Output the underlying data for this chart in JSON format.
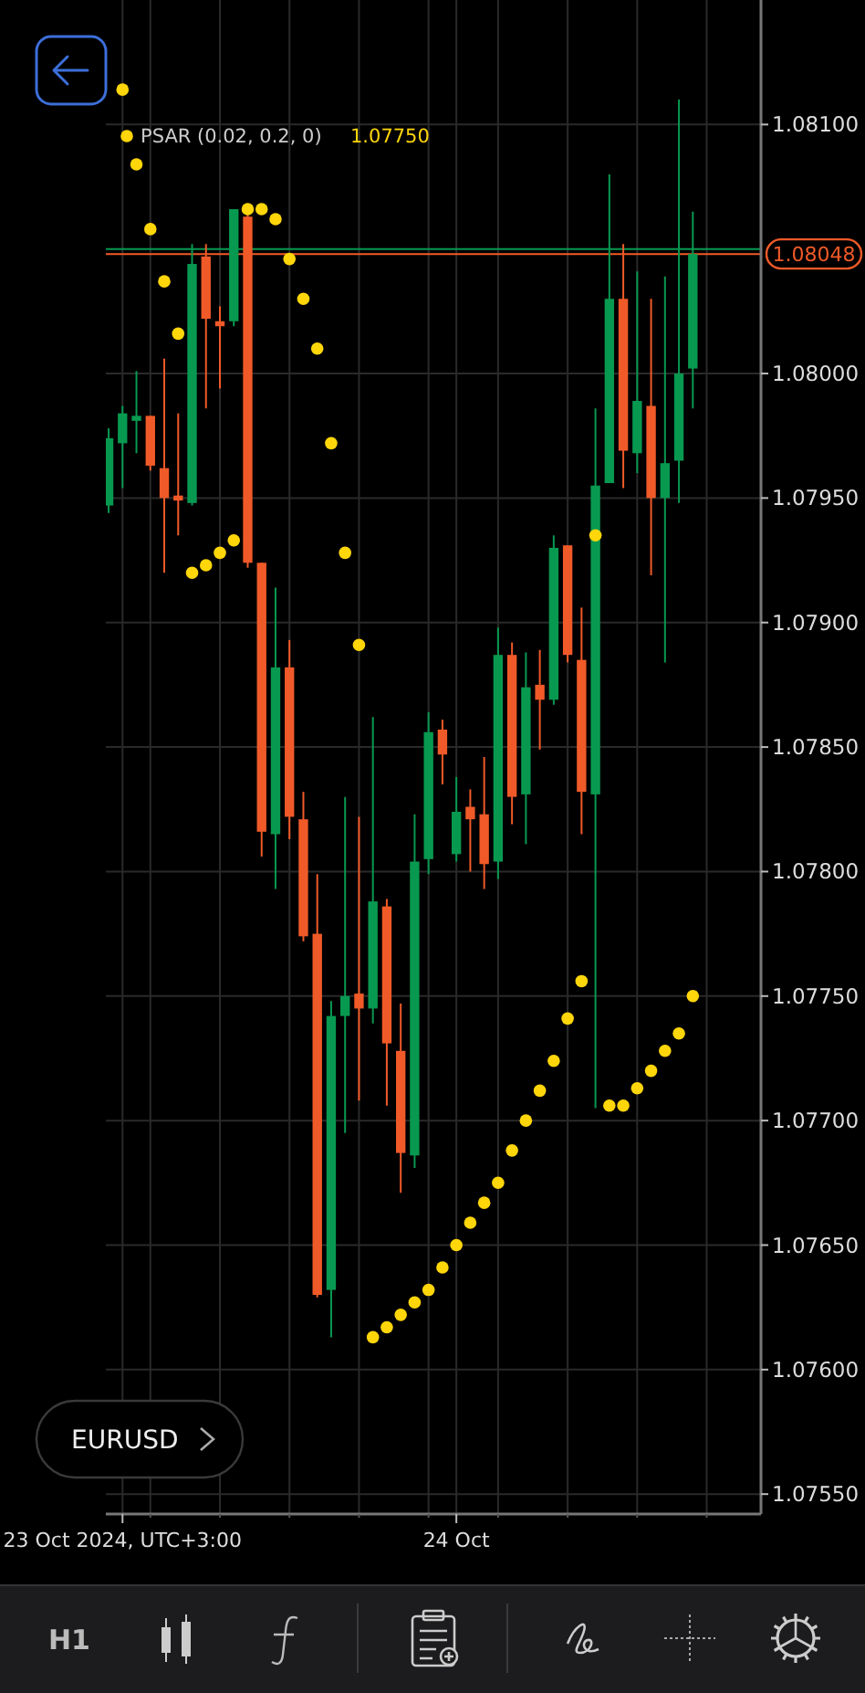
{
  "chart_data": {
    "type": "candlestick",
    "tick_labels": "xy",
    "grid": true,
    "x": [
      "2024-10-22T23:00",
      "2024-10-23T00:00",
      "2024-10-23T01:00",
      "2024-10-23T02:00",
      "2024-10-23T03:00",
      "2024-10-23T04:00",
      "2024-10-23T05:00",
      "2024-10-23T06:00",
      "2024-10-23T07:00",
      "2024-10-23T08:00",
      "2024-10-23T09:00",
      "2024-10-23T10:00",
      "2024-10-23T11:00",
      "2024-10-23T12:00",
      "2024-10-23T13:00",
      "2024-10-23T14:00",
      "2024-10-23T15:00",
      "2024-10-23T16:00",
      "2024-10-23T17:00",
      "2024-10-23T18:00",
      "2024-10-23T19:00",
      "2024-10-23T20:00",
      "2024-10-23T21:00",
      "2024-10-23T22:00",
      "2024-10-23T23:00",
      "2024-10-24T00:00",
      "2024-10-24T01:00",
      "2024-10-24T02:00",
      "2024-10-24T03:00",
      "2024-10-24T04:00",
      "2024-10-24T05:00",
      "2024-10-24T06:00",
      "2024-10-24T07:00",
      "2024-10-24T08:00",
      "2024-10-24T09:00",
      "2024-10-24T10:00",
      "2024-10-24T11:00",
      "2024-10-24T12:00",
      "2024-10-24T13:00",
      "2024-10-24T14:00",
      "2024-10-24T15:00",
      "2024-10-24T16:00",
      "2024-10-24T17:00"
    ],
    "ohlc": [
      [
        1.07947,
        1.07978,
        1.07944,
        1.07974
      ],
      [
        1.07972,
        1.07987,
        1.07954,
        1.07984
      ],
      [
        1.07981,
        1.08001,
        1.07968,
        1.07983
      ],
      [
        1.07983,
        1.07983,
        1.07961,
        1.07963
      ],
      [
        1.07962,
        1.08006,
        1.0792,
        1.0795
      ],
      [
        1.07951,
        1.07984,
        1.07935,
        1.07949
      ],
      [
        1.07948,
        1.08052,
        1.07947,
        1.08044
      ],
      [
        1.08047,
        1.08052,
        1.07986,
        1.08022
      ],
      [
        1.08021,
        1.08027,
        1.07994,
        1.08019
      ],
      [
        1.08021,
        1.08066,
        1.08019,
        1.08066
      ],
      [
        1.08063,
        1.08065,
        1.07922,
        1.07924
      ],
      [
        1.07924,
        1.07924,
        1.07806,
        1.07816
      ],
      [
        1.07815,
        1.07914,
        1.07793,
        1.07882
      ],
      [
        1.07882,
        1.07893,
        1.07813,
        1.07822
      ],
      [
        1.07821,
        1.07832,
        1.07772,
        1.07774
      ],
      [
        1.07775,
        1.07799,
        1.07629,
        1.0763
      ],
      [
        1.07632,
        1.07748,
        1.07613,
        1.07742
      ],
      [
        1.07742,
        1.0783,
        1.07695,
        1.0775
      ],
      [
        1.07751,
        1.07822,
        1.07708,
        1.07745
      ],
      [
        1.07745,
        1.07862,
        1.07739,
        1.07788
      ],
      [
        1.07786,
        1.07789,
        1.07706,
        1.07731
      ],
      [
        1.07728,
        1.07747,
        1.07671,
        1.07687
      ],
      [
        1.07686,
        1.07823,
        1.07681,
        1.07804
      ],
      [
        1.07805,
        1.07864,
        1.07799,
        1.07856
      ],
      [
        1.07857,
        1.07861,
        1.07835,
        1.07847
      ],
      [
        1.07807,
        1.07838,
        1.07804,
        1.07824
      ],
      [
        1.07826,
        1.07833,
        1.078,
        1.07821
      ],
      [
        1.07823,
        1.07846,
        1.07793,
        1.07803
      ],
      [
        1.07804,
        1.07898,
        1.07797,
        1.07887
      ],
      [
        1.07887,
        1.07892,
        1.07819,
        1.0783
      ],
      [
        1.07831,
        1.07888,
        1.07811,
        1.07874
      ],
      [
        1.07875,
        1.07889,
        1.07849,
        1.07869
      ],
      [
        1.07869,
        1.07935,
        1.07867,
        1.0793
      ],
      [
        1.07931,
        1.07931,
        1.07884,
        1.07887
      ],
      [
        1.07885,
        1.07906,
        1.07815,
        1.07832
      ],
      [
        1.07831,
        1.07986,
        1.07705,
        1.07955
      ],
      [
        1.07956,
        1.0808,
        1.07956,
        1.0803
      ],
      [
        1.0803,
        1.08052,
        1.07954,
        1.07969
      ],
      [
        1.07968,
        1.08041,
        1.0796,
        1.07989
      ],
      [
        1.07987,
        1.0803,
        1.07919,
        1.0795
      ],
      [
        1.0795,
        1.08039,
        1.07884,
        1.07964
      ],
      [
        1.07965,
        1.0811,
        1.07948,
        1.08
      ],
      [
        1.08002,
        1.08065,
        1.07986,
        1.08048
      ]
    ],
    "colors": [
      "#089950",
      "#089950",
      "#089950",
      "#f05a28",
      "#f05a28",
      "#f05a28",
      "#089950",
      "#f05a28",
      "#f05a28",
      "#089950",
      "#f05a28",
      "#f05a28",
      "#089950",
      "#f05a28",
      "#f05a28",
      "#f05a28",
      "#089950",
      "#089950",
      "#f05a28",
      "#089950",
      "#f05a28",
      "#f05a28",
      "#089950",
      "#089950",
      "#f05a28",
      "#089950",
      "#f05a28",
      "#f05a28",
      "#089950",
      "#f05a28",
      "#089950",
      "#f05a28",
      "#089950",
      "#f05a28",
      "#f05a28",
      "#089950",
      "#089950",
      "#f05a28",
      "#089950",
      "#f05a28",
      "#089950",
      "#089950",
      "#089950"
    ],
    "series": [
      {
        "type": "scatter",
        "name": "PSAR (0.02, 0.2, 0)",
        "color": "#ffd60a",
        "x": [
          "2024-10-23T00:00",
          "2024-10-23T01:00",
          "2024-10-23T02:00",
          "2024-10-23T03:00",
          "2024-10-23T04:00",
          "2024-10-23T05:00",
          "2024-10-23T06:00",
          "2024-10-23T07:00",
          "2024-10-23T08:00",
          "2024-10-23T09:00",
          "2024-10-23T10:00",
          "2024-10-23T11:00",
          "2024-10-23T12:00",
          "2024-10-23T13:00",
          "2024-10-23T14:00",
          "2024-10-23T15:00",
          "2024-10-23T16:00",
          "2024-10-23T17:00",
          "2024-10-23T18:00",
          "2024-10-23T19:00",
          "2024-10-23T20:00",
          "2024-10-23T21:00",
          "2024-10-23T22:00",
          "2024-10-23T23:00",
          "2024-10-24T00:00",
          "2024-10-24T01:00",
          "2024-10-24T02:00",
          "2024-10-24T03:00",
          "2024-10-24T04:00",
          "2024-10-24T05:00",
          "2024-10-24T06:00",
          "2024-10-24T07:00",
          "2024-10-24T08:00",
          "2024-10-24T09:00",
          "2024-10-24T10:00",
          "2024-10-24T11:00",
          "2024-10-24T12:00",
          "2024-10-24T13:00",
          "2024-10-24T14:00",
          "2024-10-24T15:00",
          "2024-10-24T16:00",
          "2024-10-24T17:00"
        ],
        "values": [
          1.08114,
          1.08084,
          1.08058,
          1.08037,
          1.08016,
          1.0792,
          1.07923,
          1.07928,
          1.07933,
          1.08066,
          1.08066,
          1.08062,
          1.08046,
          1.0803,
          1.0801,
          1.07972,
          1.07928,
          1.07891,
          1.07613,
          1.07617,
          1.07622,
          1.07627,
          1.07632,
          1.07641,
          1.0765,
          1.07659,
          1.07667,
          1.07675,
          1.07688,
          1.077,
          1.07712,
          1.07724,
          1.07741,
          1.07756,
          1.07935,
          1.07706,
          1.07706,
          1.07713,
          1.0772,
          1.07728,
          1.07735,
          1.0775
        ]
      }
    ],
    "marker": "circle",
    "legend": "top left",
    "xlim": [
      "2024-10-22T22:48",
      "2024-10-24T21:54"
    ],
    "xticks": [
      {
        "value": "2024-10-23T00:00",
        "label": "23 Oct 2024, UTC+3:00"
      },
      {
        "value": "2024-10-23T02:00",
        "label": null
      },
      {
        "value": "2024-10-23T07:00",
        "label": null
      },
      {
        "value": "2024-10-23T12:00",
        "label": null
      },
      {
        "value": "2024-10-23T17:00",
        "label": null
      },
      {
        "value": "2024-10-23T22:00",
        "label": null
      },
      {
        "value": "2024-10-24T00:00",
        "label": "24 Oct"
      },
      {
        "value": "2024-10-24T03:00",
        "label": null
      },
      {
        "value": "2024-10-24T08:00",
        "label": null
      },
      {
        "value": "2024-10-24T13:00",
        "label": null
      },
      {
        "value": "2024-10-24T18:00",
        "label": null
      }
    ],
    "ylim": [
      1.07542,
      1.0815
    ],
    "yticks": [
      {
        "value": 1.0755,
        "label": "1.07550"
      },
      {
        "value": 1.076,
        "label": "1.07600"
      },
      {
        "value": 1.0765,
        "label": "1.07650"
      },
      {
        "value": 1.077,
        "label": "1.07700"
      },
      {
        "value": 1.0775,
        "label": "1.07750"
      },
      {
        "value": 1.078,
        "label": "1.07800"
      },
      {
        "value": 1.0785,
        "label": "1.07850"
      },
      {
        "value": 1.079,
        "label": "1.07900"
      },
      {
        "value": 1.0795,
        "label": "1.07950"
      },
      {
        "value": 1.08,
        "label": "1.08000"
      },
      {
        "value": 1.081,
        "label": "1.08100"
      }
    ],
    "ref_lines": [
      {
        "axis": "y",
        "value": 1.0805,
        "color": "#089950"
      },
      {
        "axis": "y",
        "value": 1.08048,
        "label": "1.08048",
        "color": "#f05a28"
      }
    ],
    "annotations": [
      "1.07750",
      "EURUSD",
      "H1"
    ]
  }
}
